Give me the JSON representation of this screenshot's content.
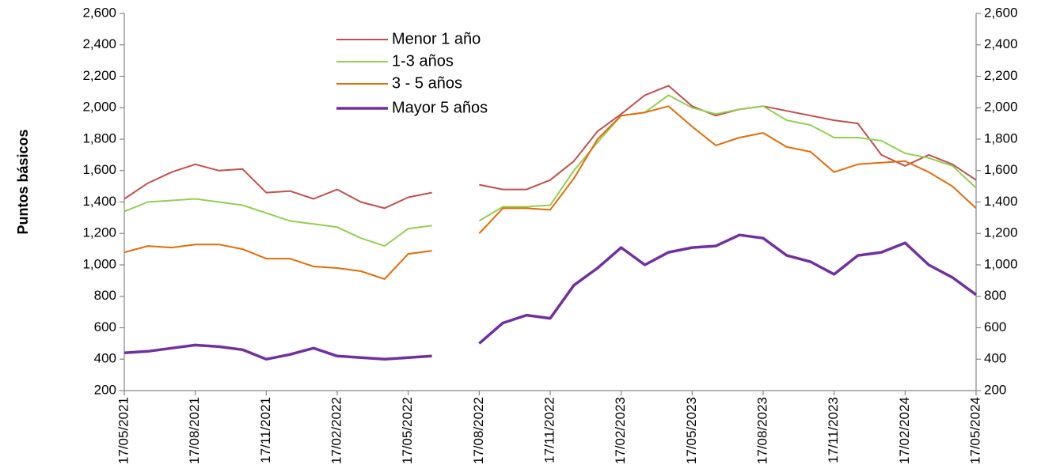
{
  "chart_data": {
    "type": "line",
    "y_label": "Puntos básicos",
    "categories": [
      "17/05/2021",
      null,
      null,
      "17/08/2021",
      null,
      null,
      "17/11/2021",
      null,
      null,
      "17/02/2022",
      null,
      null,
      "17/05/2022",
      null,
      null,
      "17/08/2022",
      null,
      null,
      "17/11/2022",
      null,
      null,
      "17/02/2023",
      null,
      null,
      "17/05/2023",
      null,
      null,
      "17/08/2023",
      null,
      null,
      "17/11/2023",
      null,
      null,
      "17/02/2024",
      null,
      null,
      "17/05/2024"
    ],
    "series": [
      {
        "name": "Menor 1 año",
        "color": "#c0504d",
        "values": [
          1420,
          1520,
          1590,
          1640,
          1600,
          1610,
          1460,
          1470,
          1420,
          1480,
          1400,
          1360,
          1430,
          1460,
          null,
          1510,
          1480,
          1480,
          1540,
          1660,
          1850,
          1960,
          2080,
          2140,
          2010,
          1950,
          1990,
          2010,
          1980,
          1950,
          1920,
          1900,
          1700,
          1630,
          1700,
          1640,
          1540
        ]
      },
      {
        "name": "1-3 años",
        "color": "#92d050",
        "values": [
          1340,
          1400,
          1410,
          1420,
          1400,
          1380,
          1330,
          1280,
          1260,
          1240,
          1170,
          1120,
          1230,
          1250,
          null,
          1280,
          1370,
          1370,
          1380,
          1600,
          1780,
          1950,
          1970,
          2080,
          2000,
          1960,
          1990,
          2010,
          1920,
          1890,
          1810,
          1810,
          1790,
          1710,
          1680,
          1630,
          1490
        ]
      },
      {
        "name": "3 - 5 años",
        "color": "#e36c09",
        "values": [
          1080,
          1120,
          1110,
          1130,
          1130,
          1100,
          1040,
          1040,
          990,
          980,
          960,
          910,
          1070,
          1090,
          null,
          1200,
          1360,
          1360,
          1350,
          1550,
          1800,
          1950,
          1970,
          2010,
          1880,
          1760,
          1810,
          1840,
          1750,
          1720,
          1590,
          1640,
          1650,
          1660,
          1590,
          1500,
          1360
        ]
      },
      {
        "name": "Mayor 5 años",
        "color": "#7030a0",
        "values": [
          440,
          450,
          470,
          490,
          480,
          460,
          400,
          430,
          470,
          420,
          410,
          400,
          410,
          420,
          null,
          500,
          630,
          680,
          660,
          870,
          980,
          1110,
          1000,
          1080,
          1110,
          1120,
          1190,
          1170,
          1060,
          1020,
          940,
          1060,
          1080,
          1140,
          1000,
          920,
          810
        ]
      }
    ],
    "ylim": [
      200,
      2600
    ],
    "yticks": [
      {
        "value": 200,
        "label": "200"
      },
      {
        "value": 400,
        "label": "400"
      },
      {
        "value": 600,
        "label": "600"
      },
      {
        "value": 800,
        "label": "800"
      },
      {
        "value": 1000,
        "label": "1,000"
      },
      {
        "value": 1200,
        "label": "1,200"
      },
      {
        "value": 1400,
        "label": "1,400"
      },
      {
        "value": 1600,
        "label": "1,600"
      },
      {
        "value": 1800,
        "label": "1,800"
      },
      {
        "value": 2000,
        "label": "2,000"
      },
      {
        "value": 2200,
        "label": "2,200"
      },
      {
        "value": 2400,
        "label": "2,400"
      },
      {
        "value": 2600,
        "label": "2,600"
      }
    ],
    "y2lim": [
      200,
      2600
    ],
    "y2ticks": [
      {
        "value": 200,
        "label": "200"
      },
      {
        "value": 400,
        "label": "400"
      },
      {
        "value": 600,
        "label": "600"
      },
      {
        "value": 800,
        "label": "800"
      },
      {
        "value": 1000,
        "label": "1,000"
      },
      {
        "value": 1200,
        "label": "1,200"
      },
      {
        "value": 1400,
        "label": "1,400"
      },
      {
        "value": 1600,
        "label": "1,600"
      },
      {
        "value": 1800,
        "label": "1,800"
      },
      {
        "value": 2000,
        "label": "2,000"
      },
      {
        "value": 2200,
        "label": "2,200"
      },
      {
        "value": 2400,
        "label": "2,400"
      },
      {
        "value": 2600,
        "label": "2,600"
      }
    ],
    "legend": "top-left",
    "grid": false
  }
}
